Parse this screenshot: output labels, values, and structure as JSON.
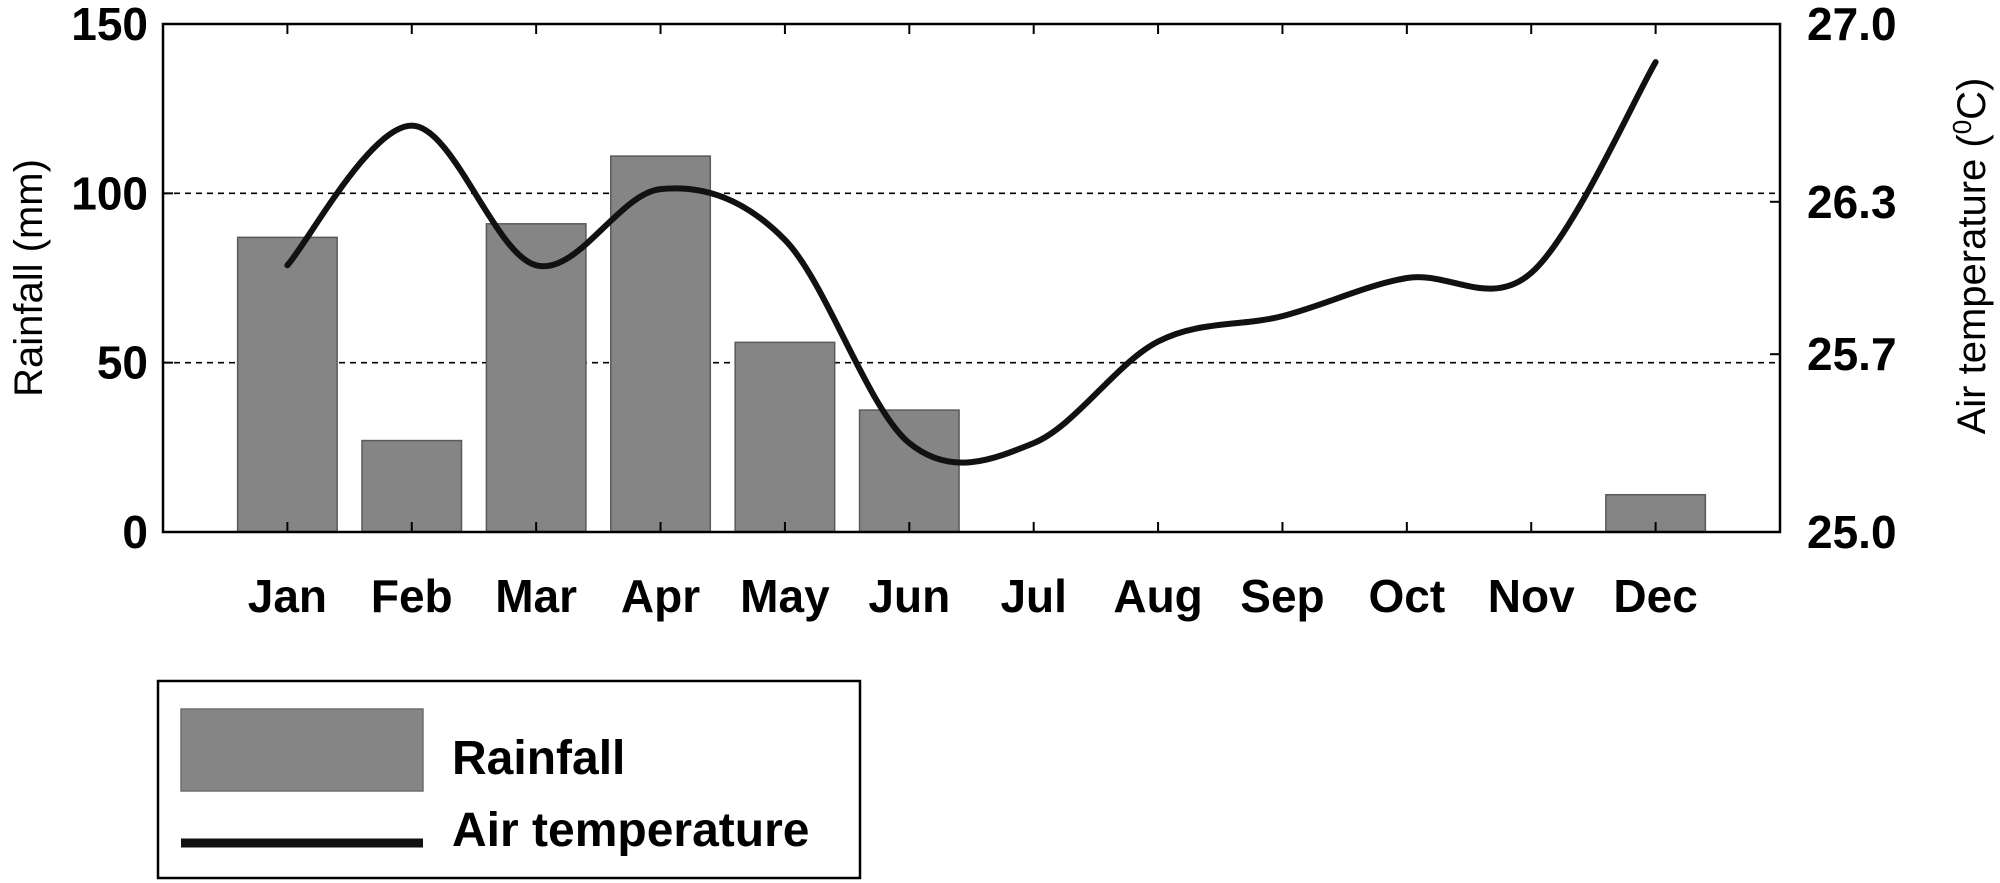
{
  "chart_data": {
    "type": "bar",
    "categories": [
      "Jan",
      "Feb",
      "Mar",
      "Apr",
      "May",
      "Jun",
      "Jul",
      "Aug",
      "Sep",
      "Oct",
      "Nov",
      "Dec"
    ],
    "series": [
      {
        "name": "Rainfall",
        "type": "bar",
        "axis": "left",
        "color": "#858585",
        "values": [
          87,
          27,
          91,
          111,
          56,
          36,
          0,
          0,
          0,
          0,
          0,
          11
        ]
      },
      {
        "name": "Air temperature",
        "type": "line",
        "axis": "right",
        "color": "#111111",
        "values": [
          26.05,
          26.6,
          26.05,
          26.35,
          26.15,
          25.35,
          25.35,
          25.75,
          25.85,
          26.0,
          26.02,
          26.85
        ]
      }
    ],
    "ylabel": "Rainfall (mm)",
    "ylabel_right": "Air temperature (",
    "ylabel_right_sup": "0",
    "ylabel_right_unit": "C)",
    "ylim": [
      0,
      150
    ],
    "yticks": [
      "0",
      "50",
      "100",
      "150"
    ],
    "ylim_right": [
      25.0,
      27.0
    ],
    "yticks_right": [
      "25.0",
      "25.7",
      "26.3",
      "27.0"
    ],
    "grid": "horizontal dashed at 50 and 100",
    "legend_position": "bottom-left"
  }
}
